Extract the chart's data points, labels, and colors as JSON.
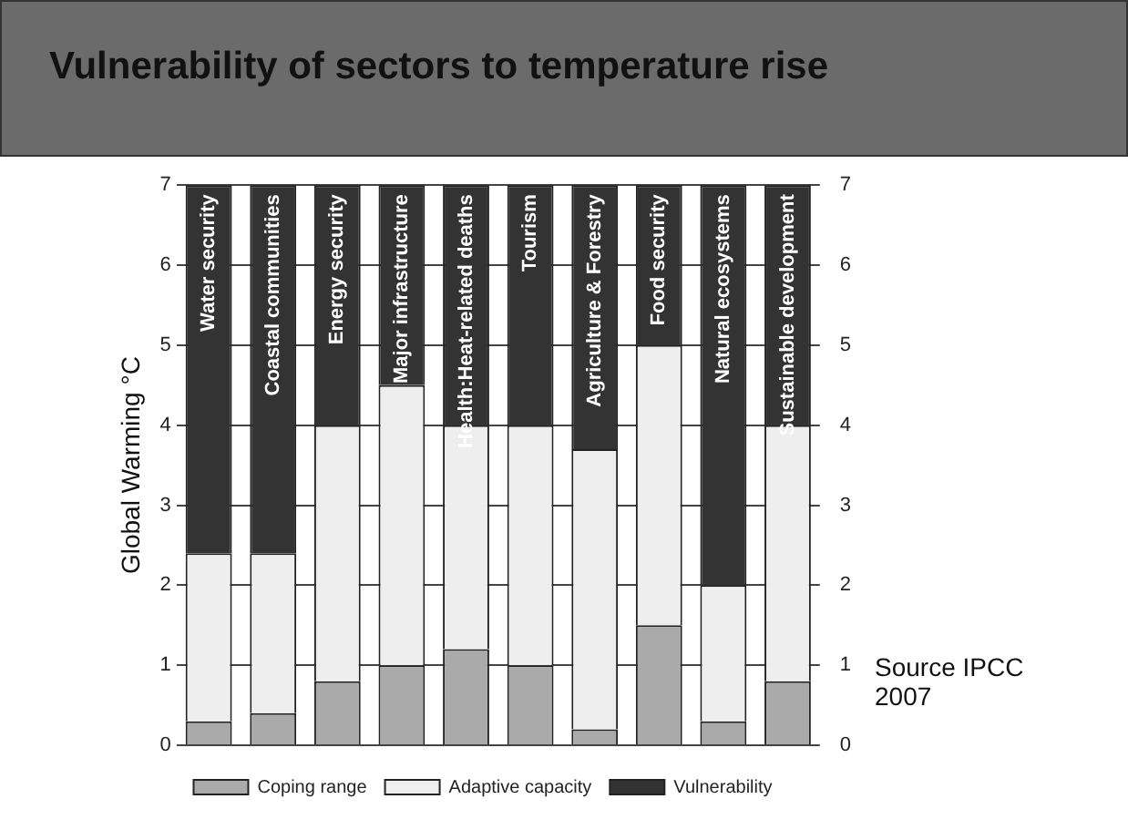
{
  "chart_data": {
    "type": "bar",
    "stacked": true,
    "title": "Vulnerability of sectors to temperature rise",
    "ylabel": "Global Warming °C",
    "categories": [
      "Water security",
      "Coastal communities",
      "Energy security",
      "Major infrastructure",
      "Health:Heat-related deaths",
      "Tourism",
      "Agriculture & Forestry",
      "Food security",
      "Natural ecosystems",
      "Sustainable development"
    ],
    "series": [
      {
        "name": "Coping range",
        "color": "#aaaaaa",
        "values": [
          0.3,
          0.4,
          0.8,
          1.0,
          1.2,
          1.0,
          0.2,
          1.5,
          0.3,
          0.8
        ]
      },
      {
        "name": "Adaptive capacity",
        "color": "#eeeeee",
        "values": [
          2.1,
          2.0,
          3.2,
          3.5,
          2.8,
          3.0,
          3.5,
          3.5,
          1.7,
          3.2
        ]
      },
      {
        "name": "Vulnerability",
        "color": "#333333",
        "values": [
          4.6,
          4.6,
          3.0,
          2.5,
          3.0,
          3.0,
          3.3,
          2.0,
          5.0,
          3.0
        ]
      }
    ],
    "ylim": [
      0,
      7
    ],
    "yticks": [
      0,
      1,
      2,
      3,
      4,
      5,
      6,
      7
    ],
    "y2lim": [
      0,
      7
    ],
    "y2ticks": [
      0,
      1,
      2,
      3,
      4,
      5,
      6,
      7
    ],
    "grid": "y",
    "legend": "bottom",
    "annotations": [
      "Source IPCC 2007"
    ]
  }
}
